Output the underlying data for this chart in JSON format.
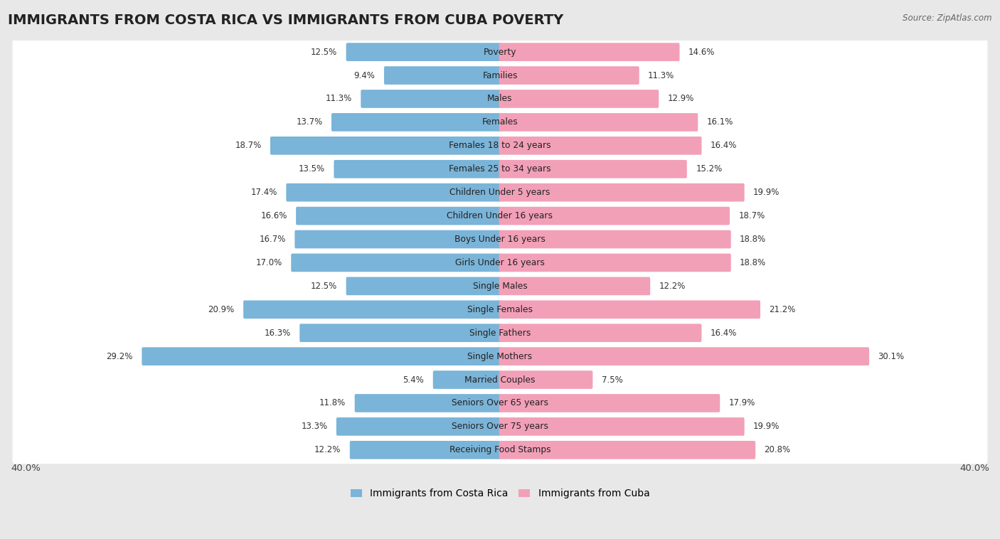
{
  "title": "IMMIGRANTS FROM COSTA RICA VS IMMIGRANTS FROM CUBA POVERTY",
  "source": "Source: ZipAtlas.com",
  "categories": [
    "Poverty",
    "Families",
    "Males",
    "Females",
    "Females 18 to 24 years",
    "Females 25 to 34 years",
    "Children Under 5 years",
    "Children Under 16 years",
    "Boys Under 16 years",
    "Girls Under 16 years",
    "Single Males",
    "Single Females",
    "Single Fathers",
    "Single Mothers",
    "Married Couples",
    "Seniors Over 65 years",
    "Seniors Over 75 years",
    "Receiving Food Stamps"
  ],
  "left_values": [
    12.5,
    9.4,
    11.3,
    13.7,
    18.7,
    13.5,
    17.4,
    16.6,
    16.7,
    17.0,
    12.5,
    20.9,
    16.3,
    29.2,
    5.4,
    11.8,
    13.3,
    12.2
  ],
  "right_values": [
    14.6,
    11.3,
    12.9,
    16.1,
    16.4,
    15.2,
    19.9,
    18.7,
    18.8,
    18.8,
    12.2,
    21.2,
    16.4,
    30.1,
    7.5,
    17.9,
    19.9,
    20.8
  ],
  "left_color": "#7ab4d8",
  "right_color": "#f2a0b8",
  "background_color": "#e8e8e8",
  "row_bg_color": "#ffffff",
  "xlim": 40.0,
  "legend_left": "Immigrants from Costa Rica",
  "legend_right": "Immigrants from Cuba",
  "bar_height": 0.62,
  "title_fontsize": 14,
  "label_fontsize": 8.8,
  "value_fontsize": 8.5
}
